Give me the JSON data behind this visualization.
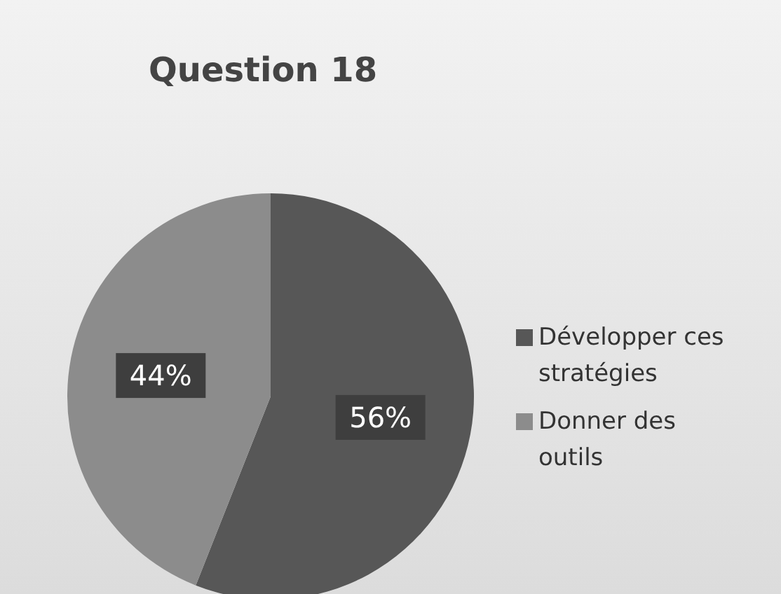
{
  "chart_data": {
    "type": "pie",
    "title": "Question 18",
    "categories": [
      "Développer ces stratégies",
      "Donner des outils"
    ],
    "values": [
      56,
      44
    ],
    "colors": [
      "#575757",
      "#8c8c8c"
    ],
    "value_labels": [
      "56%",
      "44%"
    ],
    "legend": "right"
  }
}
